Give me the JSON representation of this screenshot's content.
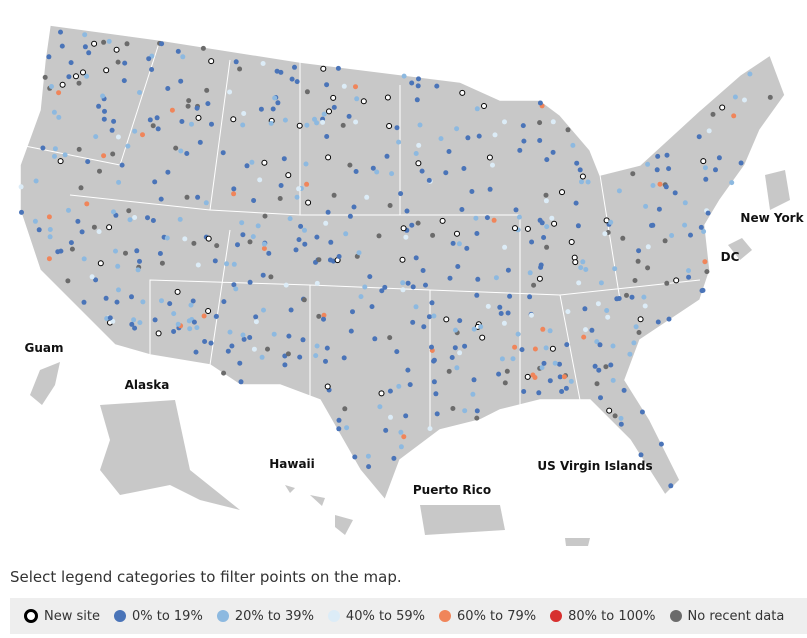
{
  "map": {
    "labels": [
      "Guam",
      "Alaska",
      "Hawaii",
      "Puerto Rico",
      "US Virgin Islands",
      "New York",
      "DC"
    ]
  },
  "instruction": "Select legend categories to filter points on the map.",
  "legend": [
    {
      "label": "New site",
      "color": "#ffffff",
      "marker": "ring"
    },
    {
      "label": "0% to 19%",
      "color": "#4a74b8",
      "marker": "dot"
    },
    {
      "label": "20% to 39%",
      "color": "#8db9e0",
      "marker": "dot"
    },
    {
      "label": "40% to 59%",
      "color": "#dcecf7",
      "marker": "dot"
    },
    {
      "label": "60% to 79%",
      "color": "#f0855a",
      "marker": "dot"
    },
    {
      "label": "80% to 100%",
      "color": "#d7302f",
      "marker": "dot"
    },
    {
      "label": "No recent data",
      "color": "#6b6b6b",
      "marker": "dot"
    }
  ]
}
